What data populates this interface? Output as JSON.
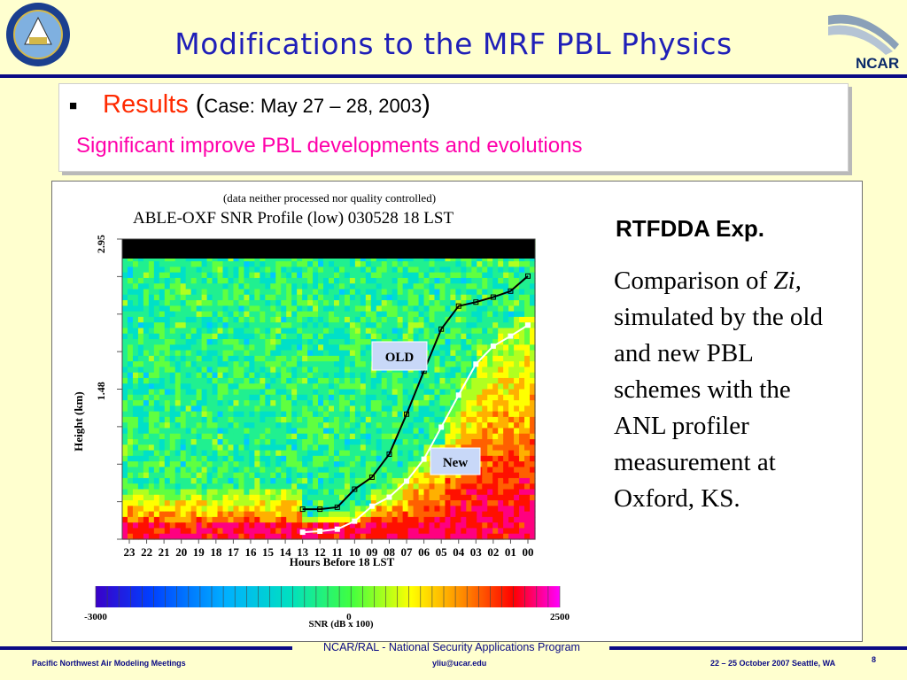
{
  "slide": {
    "title": "Modifications to the MRF PBL Physics",
    "logo_right_text": "NCAR",
    "results_label": "Results",
    "results_open": " (",
    "results_case": "Case: May 27 – 28, 2003",
    "results_close": ")",
    "subtitle": "Significant improve PBL developments and evolutions",
    "rt_title": "RTFDDA Exp.",
    "rt_desc_before": "Comparison of ",
    "rt_desc_italic": "Zi,",
    "rt_desc_after": " simulated by the old and new PBL schemes with the ANL profiler measurement at Oxford, KS.",
    "footer_program": "NCAR/RAL - National Security Applications Program",
    "footer_left": "Pacific Northwest Air Modeling Meetings",
    "footer_mid": "yliu@ucar.edu",
    "footer_right": "22 – 25 October 2007  Seattle, WA",
    "page_number": "8"
  },
  "chart_data": {
    "type": "heatmap",
    "note": "(data neither processed nor quality controlled)",
    "title": "ABLE-OXF   SNR Profile (low) 030528 18     LST",
    "xlabel": "Hours Before  18    LST",
    "ylabel": "Height (km)",
    "x_ticks": [
      "23",
      "22",
      "21",
      "20",
      "19",
      "18",
      "17",
      "16",
      "15",
      "14",
      "13",
      "12",
      "11",
      "10",
      "09",
      "08",
      "07",
      "06",
      "05",
      "04",
      "03",
      "02",
      "01",
      "00"
    ],
    "y_ticks": [
      "2.95",
      "1.48"
    ],
    "colorbar": {
      "label": "SNR  (dB x 100)",
      "ticks": [
        "-3000",
        "0",
        "2500"
      ],
      "range": [
        -3000,
        2500
      ]
    },
    "series": [
      {
        "name": "OLD",
        "color": "#000000",
        "x_hours_before": [
          13,
          12,
          11,
          10,
          9,
          8,
          7,
          6,
          5,
          4,
          3,
          2,
          1,
          0
        ],
        "y_km": [
          0.3,
          0.3,
          0.32,
          0.5,
          0.62,
          0.85,
          1.25,
          1.68,
          2.1,
          2.33,
          2.37,
          2.42,
          2.48,
          2.63
        ]
      },
      {
        "name": "New",
        "color": "#ffffff",
        "x_hours_before": [
          13,
          12,
          11,
          10,
          9,
          8,
          7,
          6,
          5,
          4,
          3,
          2,
          1,
          0
        ],
        "y_km": [
          0.07,
          0.08,
          0.1,
          0.18,
          0.33,
          0.42,
          0.58,
          0.8,
          1.12,
          1.44,
          1.75,
          1.93,
          2.03,
          2.14
        ]
      }
    ]
  }
}
